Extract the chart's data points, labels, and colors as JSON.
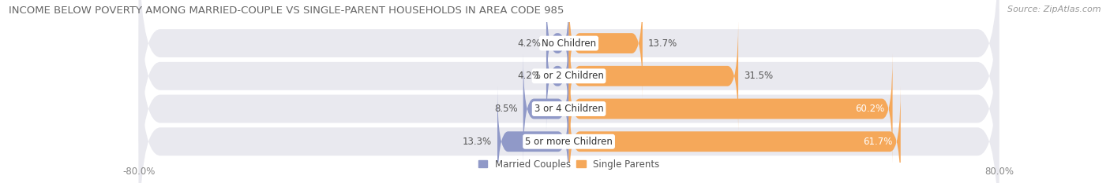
{
  "title": "INCOME BELOW POVERTY AMONG MARRIED-COUPLE VS SINGLE-PARENT HOUSEHOLDS IN AREA CODE 985",
  "source": "Source: ZipAtlas.com",
  "categories": [
    "No Children",
    "1 or 2 Children",
    "3 or 4 Children",
    "5 or more Children"
  ],
  "married_values": [
    4.2,
    4.2,
    8.5,
    13.3
  ],
  "single_values": [
    13.7,
    31.5,
    60.2,
    61.7
  ],
  "married_color": "#9099C8",
  "single_color": "#F5A85A",
  "bar_bg_color": "#E9E9EF",
  "row_bg_color": "#F0F0F5",
  "xlim_left": -80.0,
  "xlim_right": 80.0,
  "legend_married": "Married Couples",
  "legend_single": "Single Parents",
  "bar_height": 0.62,
  "figsize": [
    14.06,
    2.33
  ],
  "dpi": 100,
  "title_fontsize": 9.5,
  "source_fontsize": 8,
  "label_fontsize": 8.5,
  "tick_fontsize": 8.5,
  "legend_fontsize": 8.5,
  "category_fontsize": 8.5,
  "single_label_inside_threshold": 45
}
